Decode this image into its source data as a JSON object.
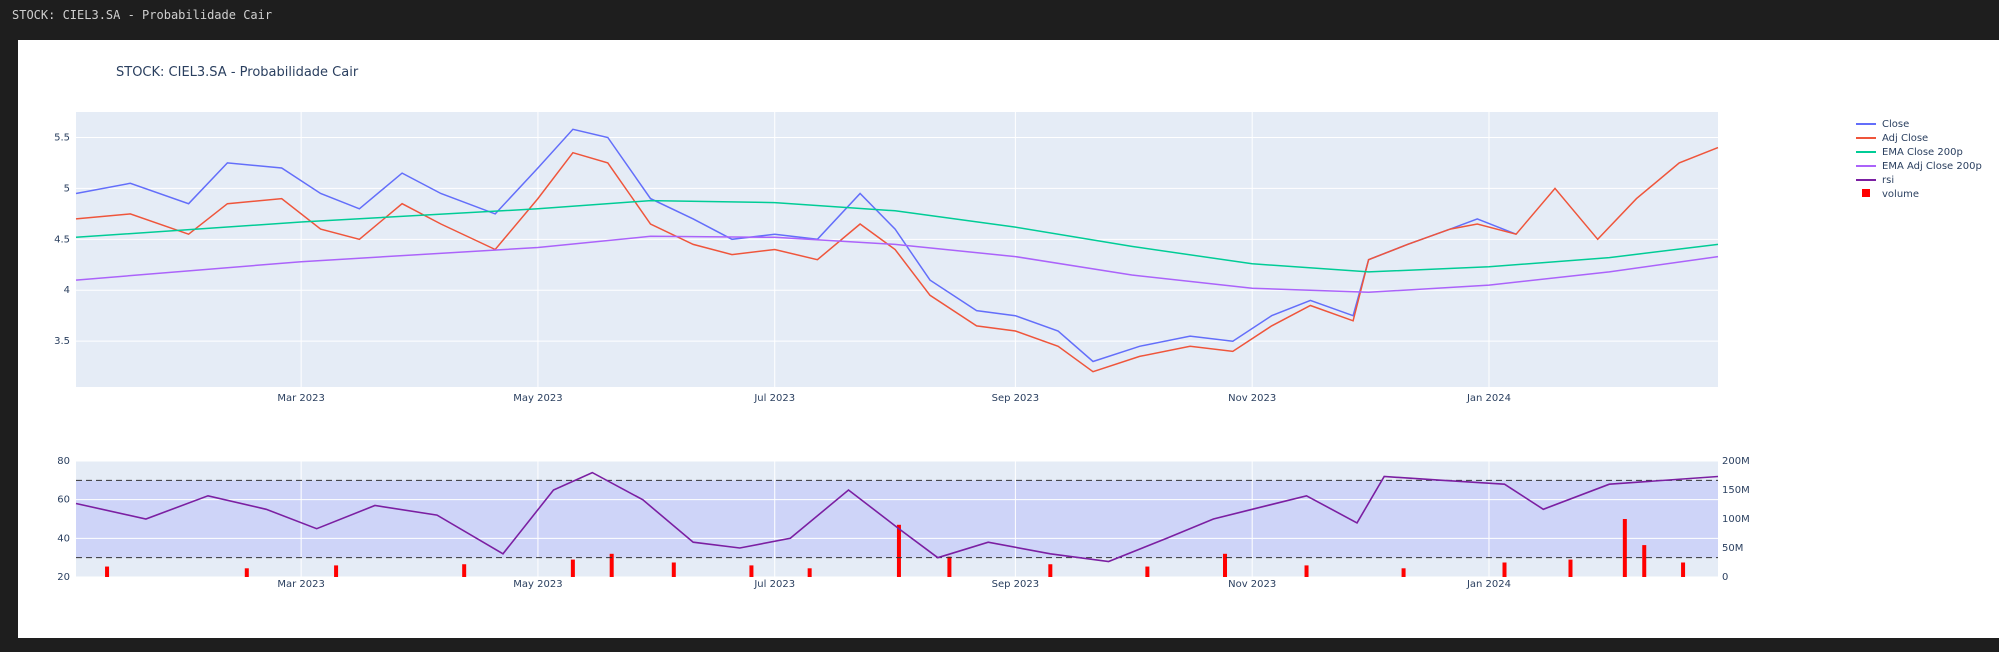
{
  "window": {
    "title": "STOCK: CIEL3.SA - Probabilidade Cair"
  },
  "chart_data": [
    {
      "type": "line",
      "title": "STOCK: CIEL3.SA - Probabilidade Cair",
      "x_start": "2023-01-02",
      "x_end": "2024-02-29",
      "xlabels": [
        {
          "date": "2023-03-01",
          "label": "Mar 2023"
        },
        {
          "date": "2023-05-01",
          "label": "May 2023"
        },
        {
          "date": "2023-07-01",
          "label": "Jul 2023"
        },
        {
          "date": "2023-09-01",
          "label": "Sep 2023"
        },
        {
          "date": "2023-11-01",
          "label": "Nov 2023"
        },
        {
          "date": "2024-01-01",
          "label": "Jan 2024"
        }
      ],
      "ylim": [
        3.05,
        5.75
      ],
      "yticks": [
        3.5,
        4,
        4.5,
        5,
        5.5
      ],
      "grid": true,
      "legend_position": "top-right",
      "series": [
        {
          "name": "Close",
          "color": "#636efa",
          "points": [
            [
              "2023-01-02",
              4.95
            ],
            [
              "2023-01-16",
              5.05
            ],
            [
              "2023-01-31",
              4.85
            ],
            [
              "2023-02-10",
              5.25
            ],
            [
              "2023-02-24",
              5.2
            ],
            [
              "2023-03-06",
              4.95
            ],
            [
              "2023-03-16",
              4.8
            ],
            [
              "2023-03-27",
              5.15
            ],
            [
              "2023-04-06",
              4.95
            ],
            [
              "2023-04-20",
              4.75
            ],
            [
              "2023-05-01",
              5.2
            ],
            [
              "2023-05-10",
              5.58
            ],
            [
              "2023-05-19",
              5.5
            ],
            [
              "2023-05-30",
              4.9
            ],
            [
              "2023-06-10",
              4.7
            ],
            [
              "2023-06-20",
              4.5
            ],
            [
              "2023-07-01",
              4.55
            ],
            [
              "2023-07-12",
              4.5
            ],
            [
              "2023-07-23",
              4.95
            ],
            [
              "2023-08-01",
              4.6
            ],
            [
              "2023-08-10",
              4.1
            ],
            [
              "2023-08-22",
              3.8
            ],
            [
              "2023-09-01",
              3.75
            ],
            [
              "2023-09-12",
              3.6
            ],
            [
              "2023-09-21",
              3.3
            ],
            [
              "2023-10-03",
              3.45
            ],
            [
              "2023-10-16",
              3.55
            ],
            [
              "2023-10-27",
              3.5
            ],
            [
              "2023-11-06",
              3.75
            ],
            [
              "2023-11-16",
              3.9
            ],
            [
              "2023-11-27",
              3.75
            ],
            [
              "2023-12-01",
              4.3
            ],
            [
              "2023-12-11",
              4.45
            ],
            [
              "2023-12-22",
              4.6
            ],
            [
              "2023-12-29",
              4.7
            ],
            [
              "2024-01-08",
              4.55
            ]
          ]
        },
        {
          "name": "Adj Close",
          "color": "#ef553b",
          "points": [
            [
              "2023-01-02",
              4.7
            ],
            [
              "2023-01-16",
              4.75
            ],
            [
              "2023-01-31",
              4.55
            ],
            [
              "2023-02-10",
              4.85
            ],
            [
              "2023-02-24",
              4.9
            ],
            [
              "2023-03-06",
              4.6
            ],
            [
              "2023-03-16",
              4.5
            ],
            [
              "2023-03-27",
              4.85
            ],
            [
              "2023-04-06",
              4.65
            ],
            [
              "2023-04-20",
              4.4
            ],
            [
              "2023-05-01",
              4.9
            ],
            [
              "2023-05-10",
              5.35
            ],
            [
              "2023-05-19",
              5.25
            ],
            [
              "2023-05-30",
              4.65
            ],
            [
              "2023-06-10",
              4.45
            ],
            [
              "2023-06-20",
              4.35
            ],
            [
              "2023-07-01",
              4.4
            ],
            [
              "2023-07-12",
              4.3
            ],
            [
              "2023-07-23",
              4.65
            ],
            [
              "2023-08-01",
              4.4
            ],
            [
              "2023-08-10",
              3.95
            ],
            [
              "2023-08-22",
              3.65
            ],
            [
              "2023-09-01",
              3.6
            ],
            [
              "2023-09-12",
              3.45
            ],
            [
              "2023-09-21",
              3.2
            ],
            [
              "2023-10-03",
              3.35
            ],
            [
              "2023-10-16",
              3.45
            ],
            [
              "2023-10-27",
              3.4
            ],
            [
              "2023-11-06",
              3.65
            ],
            [
              "2023-11-16",
              3.85
            ],
            [
              "2023-11-27",
              3.7
            ],
            [
              "2023-12-01",
              4.3
            ],
            [
              "2023-12-11",
              4.45
            ],
            [
              "2023-12-22",
              4.6
            ],
            [
              "2023-12-29",
              4.65
            ],
            [
              "2024-01-08",
              4.55
            ],
            [
              "2024-01-18",
              5.0
            ],
            [
              "2024-01-29",
              4.5
            ],
            [
              "2024-02-08",
              4.9
            ],
            [
              "2024-02-19",
              5.25
            ],
            [
              "2024-02-29",
              5.4
            ]
          ]
        },
        {
          "name": "EMA Close 200p",
          "color": "#00cc96",
          "points": [
            [
              "2023-01-02",
              4.52
            ],
            [
              "2023-03-01",
              4.67
            ],
            [
              "2023-05-01",
              4.8
            ],
            [
              "2023-05-30",
              4.88
            ],
            [
              "2023-07-01",
              4.86
            ],
            [
              "2023-08-01",
              4.78
            ],
            [
              "2023-09-01",
              4.62
            ],
            [
              "2023-10-01",
              4.43
            ],
            [
              "2023-11-01",
              4.26
            ],
            [
              "2023-12-01",
              4.18
            ],
            [
              "2024-01-01",
              4.23
            ],
            [
              "2024-02-01",
              4.32
            ],
            [
              "2024-02-29",
              4.45
            ]
          ]
        },
        {
          "name": "EMA Adj Close 200p",
          "color": "#ab63fa",
          "points": [
            [
              "2023-01-02",
              4.1
            ],
            [
              "2023-03-01",
              4.28
            ],
            [
              "2023-05-01",
              4.42
            ],
            [
              "2023-05-30",
              4.53
            ],
            [
              "2023-07-01",
              4.52
            ],
            [
              "2023-08-01",
              4.45
            ],
            [
              "2023-09-01",
              4.33
            ],
            [
              "2023-10-01",
              4.15
            ],
            [
              "2023-11-01",
              4.02
            ],
            [
              "2023-12-01",
              3.98
            ],
            [
              "2024-01-01",
              4.05
            ],
            [
              "2024-02-01",
              4.18
            ],
            [
              "2024-02-29",
              4.33
            ]
          ]
        }
      ]
    },
    {
      "type": "bar",
      "x_start": "2023-01-02",
      "x_end": "2024-02-29",
      "xlabels": [
        {
          "date": "2023-03-01",
          "label": "Mar 2023"
        },
        {
          "date": "2023-05-01",
          "label": "May 2023"
        },
        {
          "date": "2023-07-01",
          "label": "Jul 2023"
        },
        {
          "date": "2023-09-01",
          "label": "Sep 2023"
        },
        {
          "date": "2023-11-01",
          "label": "Nov 2023"
        },
        {
          "date": "2024-01-01",
          "label": "Jan 2024"
        }
      ],
      "ylim": [
        20,
        80
      ],
      "yticks": [
        20,
        40,
        60,
        80
      ],
      "y2lim": [
        0,
        200
      ],
      "y2ticks": [
        {
          "value": 0,
          "label": "0"
        },
        {
          "value": 50,
          "label": "50M"
        },
        {
          "value": 100,
          "label": "100M"
        },
        {
          "value": 150,
          "label": "150M"
        },
        {
          "value": 200,
          "label": "200M"
        }
      ],
      "reference_lines": [
        70,
        30
      ],
      "series": [
        {
          "name": "rsi",
          "color": "#7b1fa2",
          "points": [
            [
              "2023-01-02",
              58
            ],
            [
              "2023-01-20",
              50
            ],
            [
              "2023-02-05",
              62
            ],
            [
              "2023-02-20",
              55
            ],
            [
              "2023-03-05",
              45
            ],
            [
              "2023-03-20",
              57
            ],
            [
              "2023-04-05",
              52
            ],
            [
              "2023-04-22",
              32
            ],
            [
              "2023-05-05",
              65
            ],
            [
              "2023-05-15",
              74
            ],
            [
              "2023-05-28",
              60
            ],
            [
              "2023-06-10",
              38
            ],
            [
              "2023-06-22",
              35
            ],
            [
              "2023-07-05",
              40
            ],
            [
              "2023-07-20",
              65
            ],
            [
              "2023-08-02",
              45
            ],
            [
              "2023-08-12",
              30
            ],
            [
              "2023-08-25",
              38
            ],
            [
              "2023-09-10",
              32
            ],
            [
              "2023-09-25",
              28
            ],
            [
              "2023-10-10",
              40
            ],
            [
              "2023-10-22",
              50
            ],
            [
              "2023-11-01",
              55
            ],
            [
              "2023-11-15",
              62
            ],
            [
              "2023-11-28",
              48
            ],
            [
              "2023-12-05",
              72
            ],
            [
              "2023-12-20",
              70
            ],
            [
              "2024-01-05",
              68
            ],
            [
              "2024-01-15",
              55
            ],
            [
              "2024-02-01",
              68
            ],
            [
              "2024-02-29",
              72
            ]
          ]
        },
        {
          "name": "volume",
          "color": "#ff0000",
          "points": [
            [
              "2023-01-10",
              18
            ],
            [
              "2023-02-15",
              15
            ],
            [
              "2023-03-10",
              20
            ],
            [
              "2023-04-12",
              22
            ],
            [
              "2023-05-10",
              30
            ],
            [
              "2023-05-20",
              40
            ],
            [
              "2023-06-05",
              25
            ],
            [
              "2023-06-25",
              20
            ],
            [
              "2023-07-10",
              15
            ],
            [
              "2023-08-02",
              90
            ],
            [
              "2023-08-15",
              35
            ],
            [
              "2023-09-10",
              22
            ],
            [
              "2023-10-05",
              18
            ],
            [
              "2023-10-25",
              40
            ],
            [
              "2023-11-15",
              20
            ],
            [
              "2023-12-10",
              15
            ],
            [
              "2024-01-05",
              25
            ],
            [
              "2024-01-22",
              30
            ],
            [
              "2024-02-05",
              100
            ],
            [
              "2024-02-10",
              55
            ],
            [
              "2024-02-20",
              25
            ]
          ]
        }
      ]
    }
  ]
}
